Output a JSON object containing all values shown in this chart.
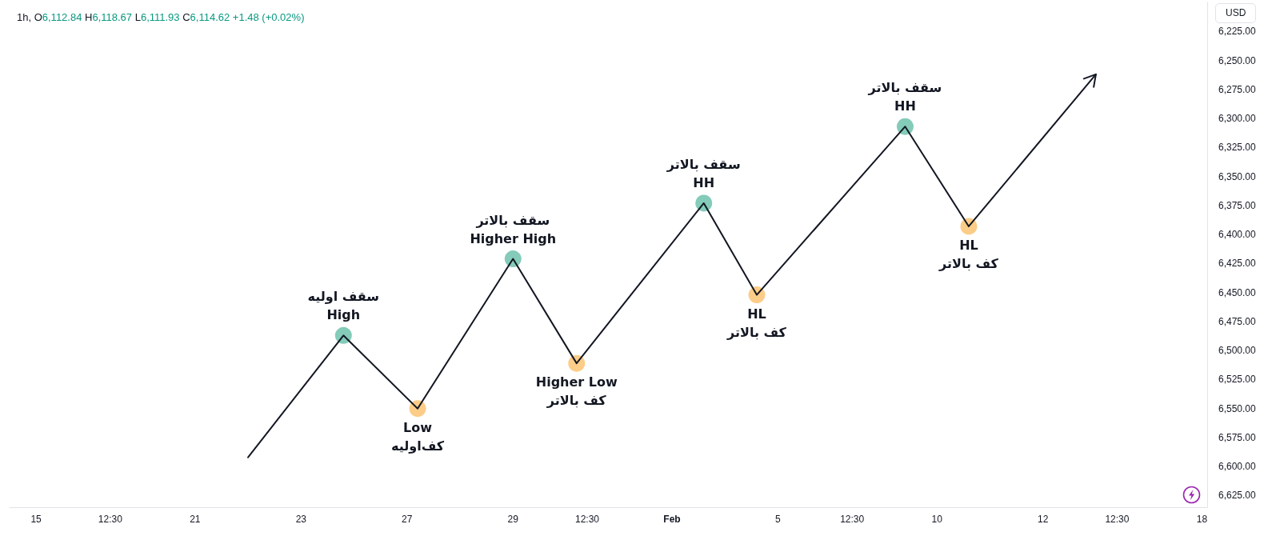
{
  "chart_data": {
    "type": "line",
    "title": "1h, O6,112.84 H6,118.67 L6,111.93 C6,114.62 +1.48 (+0.02%)",
    "ylabel": "USD",
    "categories": [
      null,
      null,
      "15",
      null,
      null,
      null,
      null,
      null,
      null,
      "12:30",
      null,
      null,
      null,
      null,
      null,
      null,
      null,
      "21",
      null,
      null,
      null,
      null,
      null,
      null,
      null,
      null,
      null,
      "23",
      null,
      null,
      null,
      null,
      null,
      null,
      null,
      null,
      null,
      "27",
      null,
      null,
      null,
      null,
      null,
      null,
      null,
      null,
      null,
      "29",
      null,
      null,
      null,
      null,
      null,
      null,
      "12:30",
      null,
      null,
      null,
      null,
      null,
      null,
      null,
      "Feb",
      null,
      null,
      null,
      null,
      null,
      null,
      null,
      null,
      null,
      "5",
      null,
      null,
      null,
      null,
      null,
      null,
      "12:30",
      null,
      null,
      null,
      null,
      null,
      null,
      null,
      "10",
      null,
      null,
      null,
      null,
      null,
      null,
      null,
      null,
      null,
      "12",
      null,
      null,
      null,
      null,
      null,
      null,
      "12:30",
      null,
      null,
      null,
      null,
      null,
      null,
      null,
      "18"
    ],
    "ylim": [
      6635,
      6200
    ],
    "yticks": [
      {
        "value": 6225,
        "label": "6,225.00"
      },
      {
        "value": 6250,
        "label": "6,250.00"
      },
      {
        "value": 6275,
        "label": "6,275.00"
      },
      {
        "value": 6300,
        "label": "6,300.00"
      },
      {
        "value": 6325,
        "label": "6,325.00"
      },
      {
        "value": 6350,
        "label": "6,350.00"
      },
      {
        "value": 6375,
        "label": "6,375.00"
      },
      {
        "value": 6400,
        "label": "6,400.00"
      },
      {
        "value": 6425,
        "label": "6,425.00"
      },
      {
        "value": 6450,
        "label": "6,450.00"
      },
      {
        "value": 6475,
        "label": "6,475.00"
      },
      {
        "value": 6500,
        "label": "6,500.00"
      },
      {
        "value": 6525,
        "label": "6,525.00"
      },
      {
        "value": 6550,
        "label": "6,550.00"
      },
      {
        "value": 6575,
        "label": "6,575.00"
      },
      {
        "value": 6600,
        "label": "6,600.00"
      },
      {
        "value": 6625,
        "label": "6,625.00"
      }
    ],
    "series": [
      {
        "color": "#131722",
        "marker": "none",
        "line_style": "solid",
        "values": [
          null,
          null,
          null,
          null,
          null,
          null,
          null,
          null,
          null,
          null,
          null,
          null,
          null,
          null,
          null,
          null,
          null,
          null,
          null,
          null,
          null,
          null,
          6592,
          null,
          null,
          null,
          null,
          null,
          null,
          null,
          null,
          6487,
          null,
          null,
          null,
          null,
          null,
          null,
          6550,
          null,
          null,
          null,
          null,
          null,
          null,
          null,
          null,
          6421,
          null,
          null,
          null,
          null,
          null,
          6511,
          null,
          null,
          null,
          null,
          null,
          null,
          null,
          null,
          null,
          null,
          null,
          6373,
          null,
          null,
          null,
          null,
          6452,
          null,
          null,
          null,
          null,
          null,
          null,
          null,
          null,
          null,
          null,
          null,
          null,
          null,
          6307,
          null,
          null,
          null,
          null,
          null,
          6393,
          null,
          null,
          null,
          null,
          null,
          null,
          null,
          null,
          null,
          null,
          null,
          6262,
          null,
          null,
          null,
          null,
          null,
          null,
          null,
          null,
          null,
          null
        ]
      },
      {
        "type": "scatter",
        "color": "#84cbb9",
        "marker": "circle",
        "values": [
          null,
          null,
          null,
          null,
          null,
          null,
          null,
          null,
          null,
          null,
          null,
          null,
          null,
          null,
          null,
          null,
          null,
          null,
          null,
          null,
          null,
          null,
          null,
          null,
          null,
          null,
          null,
          null,
          null,
          null,
          null,
          6487,
          null,
          null,
          null,
          null,
          null,
          null,
          null,
          null,
          null,
          null,
          null,
          null,
          null,
          null,
          null,
          6421,
          null,
          null,
          null,
          null,
          null,
          null,
          null,
          null,
          null,
          null,
          null,
          null,
          null,
          null,
          null,
          null,
          null,
          6373,
          null,
          null,
          null,
          null,
          null,
          null,
          null,
          null,
          null,
          null,
          null,
          null,
          null,
          null,
          null,
          null,
          null,
          null,
          6307,
          null,
          null,
          null,
          null,
          null,
          null,
          null,
          null,
          null,
          null,
          null,
          null,
          null,
          null,
          null,
          null,
          null,
          null,
          null,
          null,
          null,
          null,
          null,
          null,
          null,
          null,
          null,
          null
        ]
      },
      {
        "type": "scatter",
        "color": "#fccd88",
        "marker": "circle",
        "values": [
          null,
          null,
          null,
          null,
          null,
          null,
          null,
          null,
          null,
          null,
          null,
          null,
          null,
          null,
          null,
          null,
          null,
          null,
          null,
          null,
          null,
          null,
          null,
          null,
          null,
          null,
          null,
          null,
          null,
          null,
          null,
          null,
          null,
          null,
          null,
          null,
          null,
          null,
          6550,
          null,
          null,
          null,
          null,
          null,
          null,
          null,
          null,
          null,
          null,
          null,
          null,
          null,
          null,
          6511,
          null,
          null,
          null,
          null,
          null,
          null,
          null,
          null,
          null,
          null,
          null,
          null,
          null,
          null,
          null,
          null,
          6452,
          null,
          null,
          null,
          null,
          null,
          null,
          null,
          null,
          null,
          null,
          null,
          null,
          null,
          null,
          null,
          null,
          null,
          null,
          null,
          6393,
          null,
          null,
          null,
          null,
          null,
          null,
          null,
          null,
          null,
          null,
          null,
          null,
          null,
          null,
          null,
          null,
          null,
          null,
          null,
          null,
          null,
          null
        ]
      }
    ],
    "annotations": [
      {
        "text": "سقف اولیه\nHigh",
        "y": 6487
      },
      {
        "text": "Low\nکف‌اولیه",
        "y": 6550
      },
      {
        "text": "سقف بالاتر\nHigher High",
        "y": 6421
      },
      {
        "text": "Higher Low\nکف بالاتر",
        "y": 6511
      },
      {
        "text": "سقف بالاتر\nHH",
        "y": 6373
      },
      {
        "text": "HL\nکف بالاتر",
        "y": 6452
      },
      {
        "text": "سقف بالاتر\nHH",
        "y": 6307
      },
      {
        "text": "HL\nکف بالاتر",
        "y": 6393
      }
    ]
  }
}
